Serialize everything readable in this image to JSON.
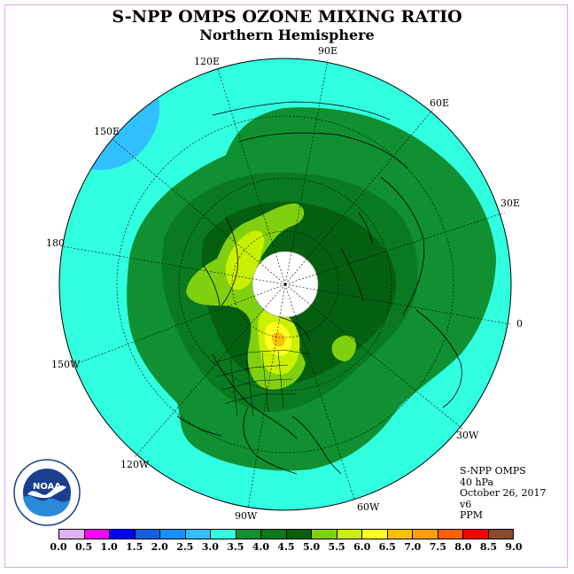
{
  "title": "S-NPP OMPS OZONE MIXING RATIO",
  "subtitle": "Northern Hemisphere",
  "longitude_labels": {
    "lon_90e": "90E",
    "lon_120e": "120E",
    "lon_60e": "60E",
    "lon_150e": "150E",
    "lon_30e": "30E",
    "lon_180": "180",
    "lon_0": "0",
    "lon_150w": "150W",
    "lon_30w": "30W",
    "lon_120w": "120W",
    "lon_60w": "60W",
    "lon_90w": "90W"
  },
  "info": {
    "instrument": "S-NPP OMPS",
    "level": "40 hPa",
    "date": "October 26, 2017",
    "version": "v6",
    "units": "PPM"
  },
  "logo_text": "NOAA",
  "colorbar": {
    "ticks": [
      "0.0",
      "0.5",
      "1.0",
      "1.5",
      "2.0",
      "2.5",
      "3.0",
      "3.5",
      "4.0",
      "4.5",
      "5.0",
      "5.5",
      "6.0",
      "6.5",
      "7.0",
      "7.5",
      "8.0",
      "8.5",
      "9.0"
    ],
    "colors": [
      "#c080ff",
      "#e0b0f0",
      "#ff00ff",
      "#0000ff",
      "#1060e0",
      "#1a90ff",
      "#30c0ff",
      "#30ffe0",
      "#109030",
      "#0a7a20",
      "#046010",
      "#80d010",
      "#c8f000",
      "#ffff20",
      "#ffc000",
      "#ffa000",
      "#ff6000",
      "#ff0000",
      "#8b4a2c"
    ]
  },
  "colors": {
    "background_ocean_band": "#30ffe0",
    "light_blue_region": "#30c0ff",
    "green_band": "#109030",
    "dark_green": "#046010",
    "lime": "#80d010",
    "yellow_green": "#c8f000",
    "yellow": "#ffff20",
    "orange": "#ffc000",
    "polar_cap": "#ffffff"
  }
}
